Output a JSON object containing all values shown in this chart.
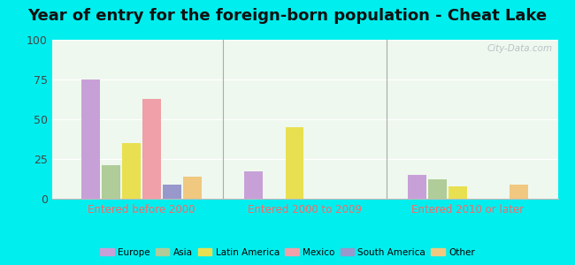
{
  "title": "Year of entry for the foreign-born population - Cheat Lake",
  "categories": [
    "Entered before 2000",
    "Entered 2000 to 2009",
    "Entered 2010 or later"
  ],
  "series_order": [
    "Europe",
    "Asia",
    "Latin America",
    "Mexico",
    "South America",
    "Other"
  ],
  "series": {
    "Europe": [
      75,
      17,
      15
    ],
    "Asia": [
      21,
      0,
      12
    ],
    "Latin America": [
      35,
      45,
      8
    ],
    "Mexico": [
      63,
      0,
      0
    ],
    "South America": [
      9,
      0,
      0
    ],
    "Other": [
      14,
      0,
      9
    ]
  },
  "colors": {
    "Europe": "#c8a0d8",
    "Asia": "#b0cc98",
    "Latin America": "#e8e050",
    "Mexico": "#f0a0a8",
    "South America": "#9898cc",
    "Other": "#f0c880"
  },
  "ylim": [
    0,
    100
  ],
  "yticks": [
    0,
    25,
    50,
    75,
    100
  ],
  "outer_bg": "#00eeee",
  "plot_bg": "#eef8ee",
  "title_fontsize": 13,
  "axis_label_color": "#ff6666",
  "watermark": "City-Data.com"
}
